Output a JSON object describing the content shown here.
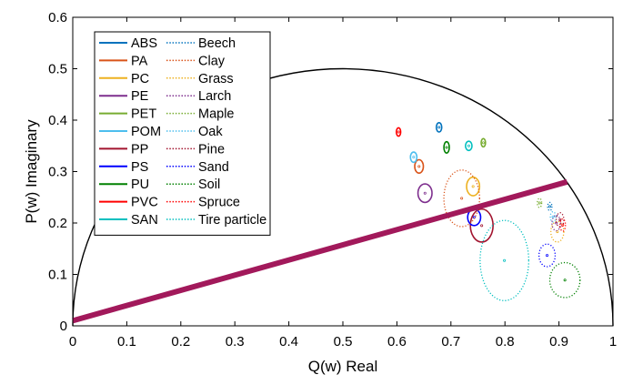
{
  "chart_data": {
    "type": "scatter",
    "title": "",
    "xlabel": "Q(w) Real",
    "ylabel": "P(w) Imaginary",
    "xlim": [
      0,
      1
    ],
    "ylim": [
      0,
      0.6
    ],
    "xticks": [
      "0",
      "0.1",
      "0.2",
      "0.3",
      "0.4",
      "0.5",
      "0.6",
      "0.7",
      "0.8",
      "0.9",
      "1"
    ],
    "yticks": [
      "0",
      "0.1",
      "0.2",
      "0.3",
      "0.4",
      "0.5",
      "0.6"
    ],
    "grid": false,
    "legend_position": "top-left",
    "semicircle": {
      "center": [
        0.5,
        0
      ],
      "radius": 0.5,
      "color": "#000000"
    },
    "line": {
      "x": [
        0,
        0.915
      ],
      "y": [
        0.01,
        0.28
      ],
      "color": "#a2195b"
    },
    "series": [
      {
        "name": "ABS",
        "style": "solid",
        "color": "#0072bd",
        "ellipses": [
          {
            "cx": 0.678,
            "cy": 0.386,
            "rx": 0.005,
            "ry": 0.009
          }
        ]
      },
      {
        "name": "PA",
        "style": "solid",
        "color": "#d95319",
        "ellipses": [
          {
            "cx": 0.641,
            "cy": 0.31,
            "rx": 0.008,
            "ry": 0.013
          }
        ]
      },
      {
        "name": "PC",
        "style": "solid",
        "color": "#edb120",
        "ellipses": [
          {
            "cx": 0.741,
            "cy": 0.271,
            "rx": 0.012,
            "ry": 0.018
          }
        ]
      },
      {
        "name": "PE",
        "style": "solid",
        "color": "#7e2f8e",
        "ellipses": [
          {
            "cx": 0.652,
            "cy": 0.258,
            "rx": 0.013,
            "ry": 0.018
          }
        ]
      },
      {
        "name": "PET",
        "style": "solid",
        "color": "#77ac30",
        "ellipses": [
          {
            "cx": 0.76,
            "cy": 0.356,
            "rx": 0.004,
            "ry": 0.008
          }
        ]
      },
      {
        "name": "POM",
        "style": "solid",
        "color": "#4dbeee",
        "ellipses": [
          {
            "cx": 0.631,
            "cy": 0.328,
            "rx": 0.006,
            "ry": 0.01
          }
        ]
      },
      {
        "name": "PP",
        "style": "solid",
        "color": "#a2142f",
        "ellipses": [
          {
            "cx": 0.757,
            "cy": 0.195,
            "rx": 0.021,
            "ry": 0.032
          }
        ]
      },
      {
        "name": "PS",
        "style": "solid",
        "color": "#0000ff",
        "ellipses": [
          {
            "cx": 0.743,
            "cy": 0.211,
            "rx": 0.012,
            "ry": 0.016
          }
        ]
      },
      {
        "name": "PU",
        "style": "solid",
        "color": "#008000",
        "ellipses": [
          {
            "cx": 0.692,
            "cy": 0.347,
            "rx": 0.005,
            "ry": 0.011
          }
        ]
      },
      {
        "name": "PVC",
        "style": "solid",
        "color": "#ff0000",
        "ellipses": [
          {
            "cx": 0.603,
            "cy": 0.377,
            "rx": 0.004,
            "ry": 0.008
          }
        ]
      },
      {
        "name": "SAN",
        "style": "solid",
        "color": "#00bfbf",
        "ellipses": [
          {
            "cx": 0.733,
            "cy": 0.35,
            "rx": 0.006,
            "ry": 0.009
          }
        ]
      },
      {
        "name": "Beech",
        "style": "dotted",
        "color": "#0072bd",
        "ellipses": [
          {
            "cx": 0.883,
            "cy": 0.232,
            "rx": 0.004,
            "ry": 0.008
          }
        ]
      },
      {
        "name": "Clay",
        "style": "dotted",
        "color": "#d95319",
        "ellipses": [
          {
            "cx": 0.72,
            "cy": 0.248,
            "rx": 0.033,
            "ry": 0.055
          }
        ]
      },
      {
        "name": "Grass",
        "style": "dotted",
        "color": "#edb120",
        "ellipses": [
          {
            "cx": 0.897,
            "cy": 0.183,
            "rx": 0.012,
            "ry": 0.02
          }
        ]
      },
      {
        "name": "Larch",
        "style": "dotted",
        "color": "#7e2f8e",
        "ellipses": [
          {
            "cx": 0.895,
            "cy": 0.2,
            "rx": 0.008,
            "ry": 0.015
          }
        ]
      },
      {
        "name": "Maple",
        "style": "dotted",
        "color": "#77ac30",
        "ellipses": [
          {
            "cx": 0.864,
            "cy": 0.239,
            "rx": 0.004,
            "ry": 0.009
          }
        ]
      },
      {
        "name": "Oak",
        "style": "dotted",
        "color": "#4dbeee",
        "ellipses": [
          {
            "cx": 0.889,
            "cy": 0.212,
            "rx": 0.005,
            "ry": 0.01
          }
        ]
      },
      {
        "name": "Pine",
        "style": "dotted",
        "color": "#a2142f",
        "ellipses": [
          {
            "cx": 0.902,
            "cy": 0.206,
            "rx": 0.007,
            "ry": 0.014
          }
        ]
      },
      {
        "name": "Sand",
        "style": "dotted",
        "color": "#0000ff",
        "ellipses": [
          {
            "cx": 0.878,
            "cy": 0.137,
            "rx": 0.015,
            "ry": 0.022
          }
        ]
      },
      {
        "name": "Soil",
        "style": "dotted",
        "color": "#008000",
        "ellipses": [
          {
            "cx": 0.911,
            "cy": 0.089,
            "rx": 0.028,
            "ry": 0.034
          }
        ]
      },
      {
        "name": "Spruce",
        "style": "dotted",
        "color": "#ff0000",
        "ellipses": [
          {
            "cx": 0.907,
            "cy": 0.196,
            "rx": 0.005,
            "ry": 0.012
          }
        ]
      },
      {
        "name": "Tire particle",
        "style": "dotted",
        "color": "#00bfbf",
        "ellipses": [
          {
            "cx": 0.799,
            "cy": 0.127,
            "rx": 0.045,
            "ry": 0.078
          }
        ]
      }
    ]
  }
}
